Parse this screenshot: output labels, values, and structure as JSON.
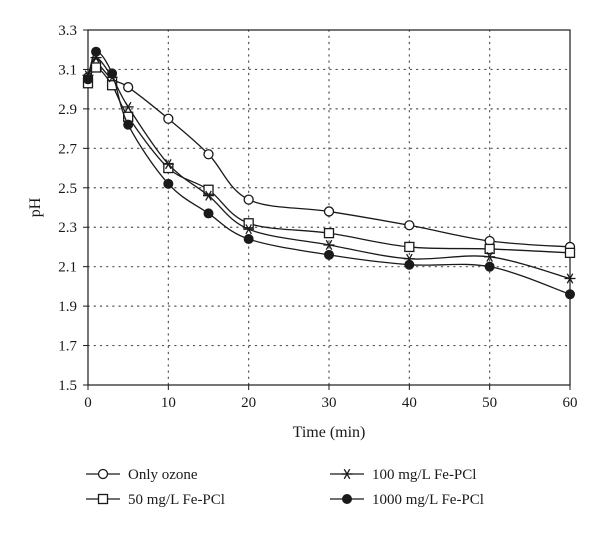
{
  "chart_data": {
    "type": "line",
    "title": "",
    "xlabel": "Time (min)",
    "ylabel": "pH",
    "xlim": [
      0,
      60
    ],
    "ylim": [
      1.5,
      3.3
    ],
    "xticks": [
      0,
      10,
      20,
      30,
      40,
      50,
      60
    ],
    "yticks": [
      1.5,
      1.7,
      1.9,
      2.1,
      2.3,
      2.5,
      2.7,
      2.9,
      3.1,
      3.3
    ],
    "grid": true,
    "legend_position": "bottom",
    "x": [
      0,
      1,
      3,
      5,
      10,
      15,
      20,
      30,
      40,
      50,
      60
    ],
    "series": [
      {
        "name": "Only ozone",
        "marker": "open-circle",
        "values": [
          3.06,
          3.13,
          3.05,
          3.01,
          2.85,
          2.67,
          2.44,
          2.38,
          2.31,
          2.23,
          2.2
        ]
      },
      {
        "name": "50 mg/L Fe-PCl",
        "marker": "open-square",
        "values": [
          3.03,
          3.11,
          3.02,
          2.86,
          2.6,
          2.49,
          2.32,
          2.27,
          2.2,
          2.19,
          2.17
        ]
      },
      {
        "name": "100 mg/L Fe-PCl",
        "marker": "star",
        "values": [
          3.07,
          3.16,
          3.06,
          2.91,
          2.62,
          2.46,
          2.29,
          2.21,
          2.14,
          2.15,
          2.04
        ]
      },
      {
        "name": "1000 mg/L Fe-PCl",
        "marker": "filled-circle",
        "values": [
          3.05,
          3.19,
          3.08,
          2.82,
          2.52,
          2.37,
          2.24,
          2.16,
          2.11,
          2.1,
          1.96
        ]
      }
    ],
    "colors": {
      "line": "#1a1a1a",
      "grid": "#555555",
      "background": "#ffffff"
    }
  }
}
